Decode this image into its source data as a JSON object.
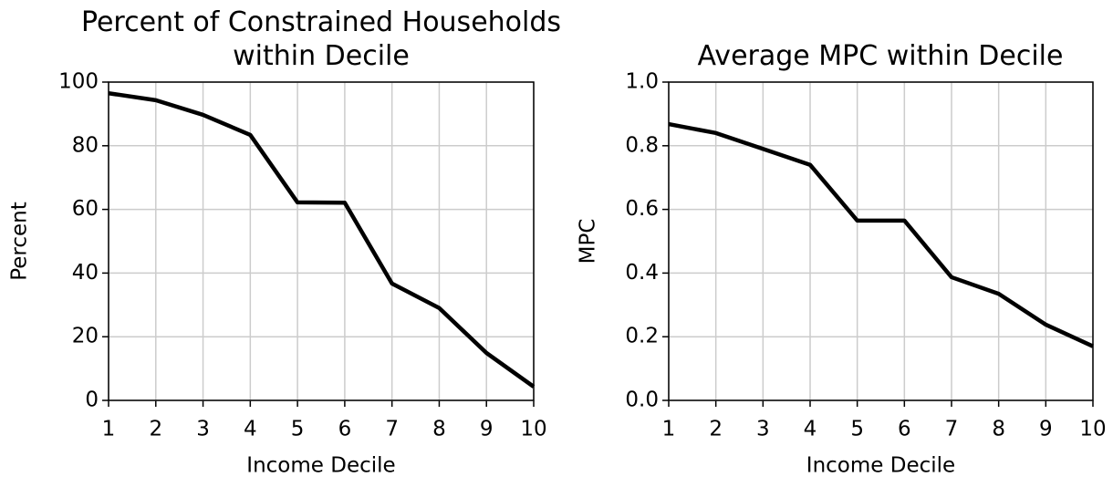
{
  "chart_data": [
    {
      "type": "line",
      "title": "Percent of Constrained Households\nwithin Decile",
      "x_label": "Income Decile",
      "y_label": "Percent",
      "x": [
        1,
        2,
        3,
        4,
        5,
        6,
        7,
        8,
        9,
        10
      ],
      "series": [
        {
          "name": "Percent",
          "color": "#000000",
          "values": [
            96.5,
            94.3,
            89.7,
            83.4,
            62.2,
            62.1,
            36.7,
            29,
            14.9,
            4.3
          ]
        }
      ],
      "xlim": [
        1,
        10
      ],
      "xticks": [
        1,
        2,
        3,
        4,
        5,
        6,
        7,
        8,
        9,
        10
      ],
      "ylim": [
        0,
        100
      ],
      "yticks": [
        0,
        20,
        40,
        60,
        80,
        100
      ],
      "grid": true
    },
    {
      "type": "line",
      "title": "Average MPC within Decile",
      "x_label": "Income Decile",
      "y_label": "MPC",
      "x": [
        1,
        2,
        3,
        4,
        5,
        6,
        7,
        8,
        9,
        10
      ],
      "series": [
        {
          "name": "MPC",
          "color": "#000000",
          "values": [
            0.868,
            0.84,
            0.79,
            0.74,
            0.565,
            0.565,
            0.387,
            0.335,
            0.238,
            0.17
          ]
        }
      ],
      "xlim": [
        1,
        10
      ],
      "xticks": [
        1,
        2,
        3,
        4,
        5,
        6,
        7,
        8,
        9,
        10
      ],
      "ylim": [
        0,
        1
      ],
      "yticks": [
        {
          "value": 0,
          "label": "0.0"
        },
        0.2,
        0.4,
        0.6,
        0.8,
        {
          "value": 1,
          "label": "1.0"
        }
      ],
      "grid": true
    }
  ]
}
